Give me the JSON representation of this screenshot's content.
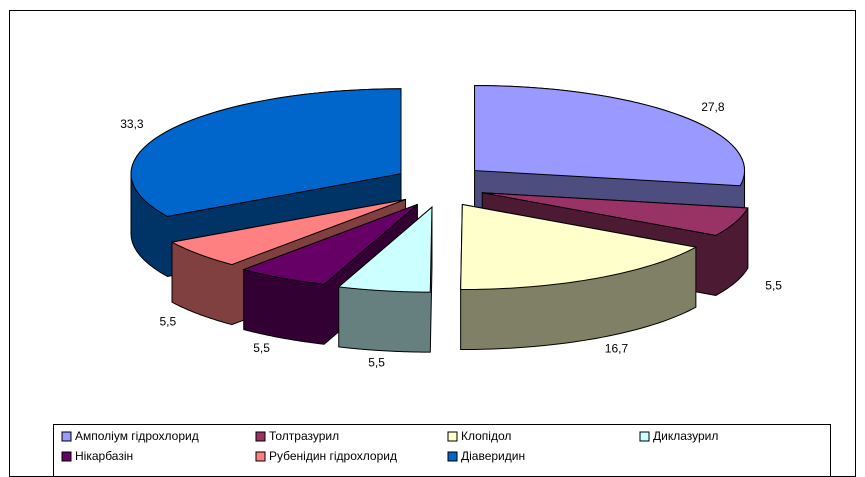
{
  "chart_data": {
    "type": "pie3d",
    "categories": [
      "Амполіум гідрохлорид",
      "Толтразурил",
      "Клопідол",
      "Диклазурил",
      "Нікарбазін",
      "Рубенідин гідрохлорид",
      "Діаверидин"
    ],
    "values": [
      27.8,
      5.5,
      16.7,
      5.5,
      5.5,
      5.5,
      33.3
    ],
    "value_labels": [
      "27,8",
      "5,5",
      "16,7",
      "5,5",
      "5,5",
      "5,5",
      "33,3"
    ],
    "colors": [
      "#9999ff",
      "#993366",
      "#ffffcc",
      "#ccffff",
      "#660066",
      "#ff8080",
      "#0066cc"
    ],
    "legend": "bottom"
  }
}
